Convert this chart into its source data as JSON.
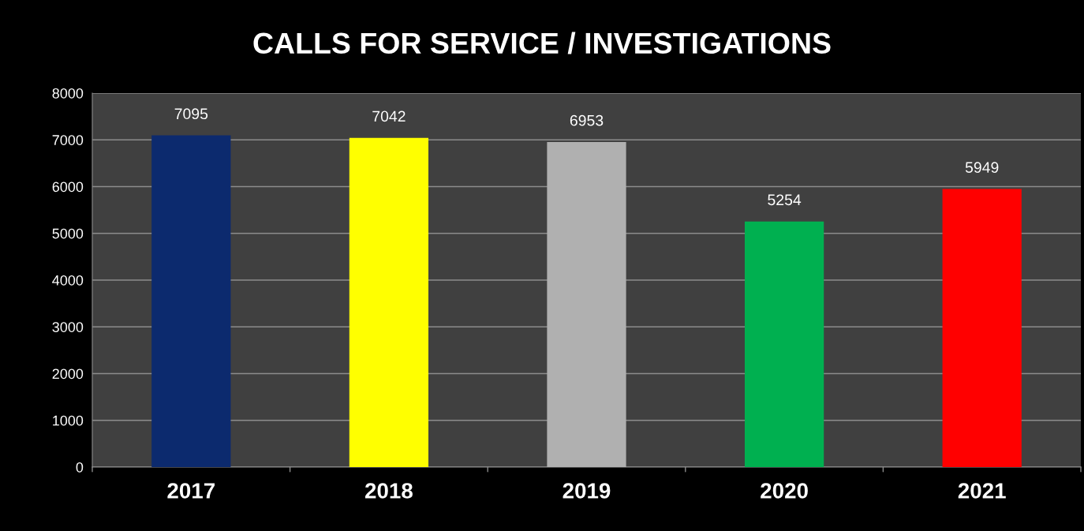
{
  "chart_data": {
    "type": "bar",
    "title": "CALLS FOR SERVICE / INVESTIGATIONS",
    "categories": [
      "2017",
      "2018",
      "2019",
      "2020",
      "2021"
    ],
    "values": [
      7095,
      7042,
      6953,
      5254,
      5949
    ],
    "colors": [
      "#0c2a6e",
      "#ffff00",
      "#b0b0b0",
      "#00b050",
      "#ff0000"
    ],
    "ylim": [
      0,
      8000
    ],
    "yticks": [
      0,
      1000,
      2000,
      3000,
      4000,
      5000,
      6000,
      7000,
      8000
    ],
    "grid": "y",
    "data_labels": true,
    "legend": false
  }
}
